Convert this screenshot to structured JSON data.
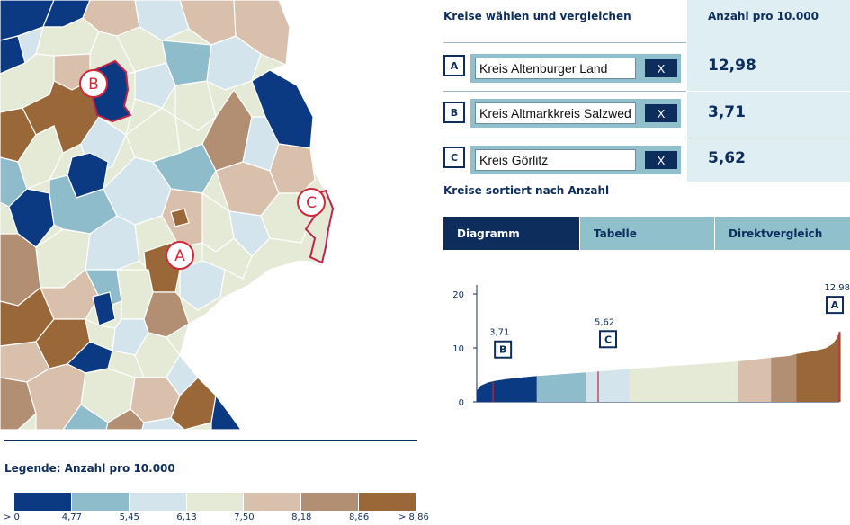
{
  "header": {
    "select_title": "Kreise wählen und vergleichen",
    "value_title": "Anzahl pro 10.000"
  },
  "rows": [
    {
      "letter": "A",
      "district": "Kreis Altenburger Land",
      "remove_label": "X",
      "value": "12,98"
    },
    {
      "letter": "B",
      "district": "Kreis Altmarkkreis Salzwedel",
      "remove_label": "X",
      "value": "3,71"
    },
    {
      "letter": "C",
      "district": "Kreis Görlitz",
      "remove_label": "X",
      "value": "5,62"
    }
  ],
  "sorted_title": "Kreise sortiert nach Anzahl",
  "tabs": [
    {
      "label": "Diagramm",
      "active": true
    },
    {
      "label": "Tabelle",
      "active": false
    },
    {
      "label": "Direktvergleich",
      "active": false
    }
  ],
  "legend": {
    "title": "Legende: Anzahl pro 10.000",
    "colors": [
      "#0b3a82",
      "#8fbccb",
      "#d3e4ec",
      "#e5ead6",
      "#d8c0ad",
      "#b28f73",
      "#9a6838"
    ],
    "labels": [
      "> 0",
      "4,77",
      "5,45",
      "6,13",
      "7,50",
      "8,18",
      "8,86",
      "> 8,86"
    ]
  },
  "map": {
    "markers": [
      "A",
      "B",
      "C"
    ],
    "marker_color": "#d0283c",
    "highlight_color": "#c0244a"
  },
  "chart_data": {
    "type": "area",
    "description_series": "Kreise sortiert nach Anzahl",
    "y_ticks": [
      0,
      10,
      20
    ],
    "ylim": [
      0,
      22
    ],
    "bands": [
      {
        "from": 0,
        "to": 4.77,
        "color": "#0b3a82"
      },
      {
        "from": 4.77,
        "to": 5.45,
        "color": "#8fbccb"
      },
      {
        "from": 5.45,
        "to": 6.13,
        "color": "#d3e4ec"
      },
      {
        "from": 6.13,
        "to": 7.5,
        "color": "#e5ead6"
      },
      {
        "from": 7.5,
        "to": 8.18,
        "color": "#d8c0ad"
      },
      {
        "from": 8.18,
        "to": 8.86,
        "color": "#b28f73"
      },
      {
        "from": 8.86,
        "to": 99,
        "color": "#9a6838"
      }
    ],
    "curve": [
      [
        0,
        2.2
      ],
      [
        0.01,
        3.0
      ],
      [
        0.03,
        3.6
      ],
      [
        0.05,
        3.9
      ],
      [
        0.08,
        4.2
      ],
      [
        0.12,
        4.5
      ],
      [
        0.16,
        4.75
      ],
      [
        0.2,
        4.95
      ],
      [
        0.25,
        5.2
      ],
      [
        0.3,
        5.45
      ],
      [
        0.34,
        5.65
      ],
      [
        0.38,
        5.85
      ],
      [
        0.42,
        6.13
      ],
      [
        0.48,
        6.35
      ],
      [
        0.55,
        6.7
      ],
      [
        0.62,
        7.0
      ],
      [
        0.68,
        7.3
      ],
      [
        0.72,
        7.5
      ],
      [
        0.76,
        7.8
      ],
      [
        0.81,
        8.18
      ],
      [
        0.86,
        8.5
      ],
      [
        0.88,
        8.86
      ],
      [
        0.92,
        9.3
      ],
      [
        0.96,
        9.9
      ],
      [
        0.98,
        10.7
      ],
      [
        0.99,
        11.6
      ],
      [
        1.0,
        12.98
      ]
    ],
    "highlights": [
      {
        "letter": "B",
        "value": 3.71,
        "label": "3,71",
        "pos": 0.045
      },
      {
        "letter": "C",
        "value": 5.62,
        "label": "5,62",
        "pos": 0.335
      },
      {
        "letter": "A",
        "value": 12.98,
        "label": "12,98",
        "pos": 1.0
      }
    ]
  }
}
